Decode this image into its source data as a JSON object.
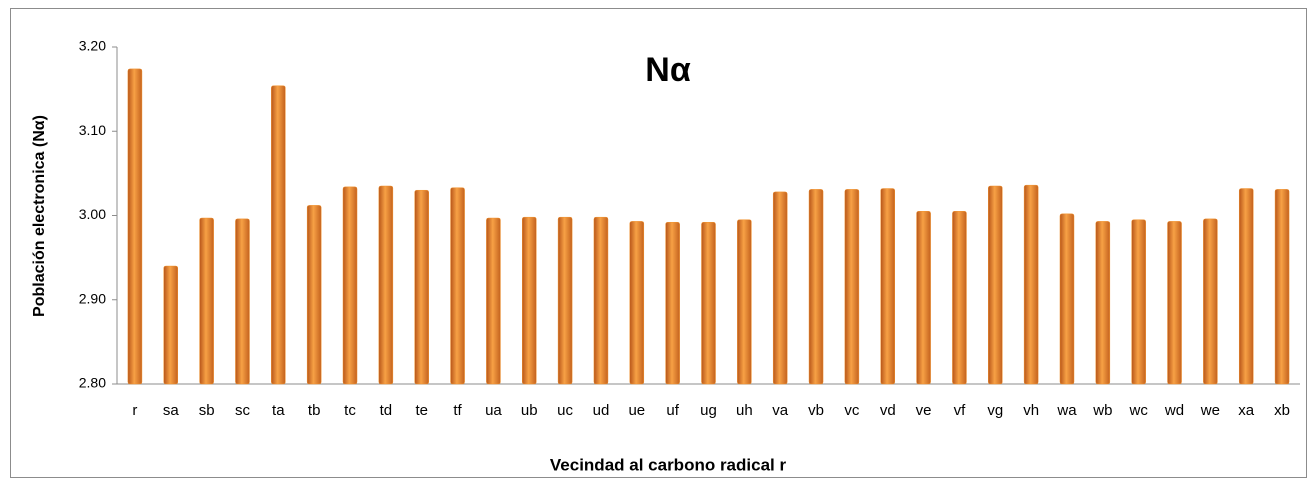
{
  "chart_data": {
    "type": "bar",
    "title": "Nα",
    "y_label": "Población electronica (Nα)",
    "x_label": "Vecindad  al carbono  radical r",
    "categories": [
      "r",
      "sa",
      "sb",
      "sc",
      "ta",
      "tb",
      "tc",
      "td",
      "te",
      "tf",
      "ua",
      "ub",
      "uc",
      "ud",
      "ue",
      "uf",
      "ug",
      "uh",
      "va",
      "vb",
      "vc",
      "vd",
      "ve",
      "vf",
      "vg",
      "vh",
      "wa",
      "wb",
      "wc",
      "wd",
      "we",
      "xa",
      "xb"
    ],
    "values": [
      3.174,
      2.94,
      2.997,
      2.996,
      3.154,
      3.012,
      3.034,
      3.035,
      3.03,
      3.033,
      2.997,
      2.998,
      2.998,
      2.998,
      2.993,
      2.992,
      2.992,
      2.995,
      3.028,
      3.031,
      3.031,
      3.032,
      3.005,
      3.005,
      3.035,
      3.036,
      3.002,
      2.993,
      2.995,
      2.993,
      2.996,
      3.032,
      3.031
    ],
    "color": "#f0922e",
    "ylim": [
      2.8,
      3.2
    ],
    "yticks": [
      {
        "value": 2.8,
        "label": "2.80"
      },
      {
        "value": 2.9,
        "label": "2.90"
      },
      {
        "value": 3.0,
        "label": "3.00"
      },
      {
        "value": 3.1,
        "label": "3.10"
      },
      {
        "value": 3.2,
        "label": "3.20"
      }
    ],
    "grid": false
  }
}
